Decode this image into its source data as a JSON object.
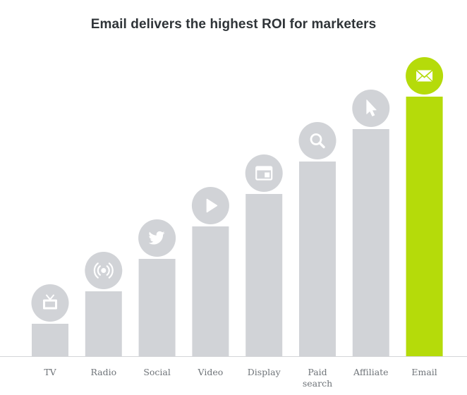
{
  "chart_data": {
    "type": "bar",
    "title": "Email delivers the highest ROI for marketers",
    "xlabel": "",
    "ylabel": "",
    "ylim": [
      0,
      8
    ],
    "grid": false,
    "legend": "none",
    "categories": [
      {
        "label": "TV",
        "lines": [
          "TV"
        ],
        "icon": "tv-icon"
      },
      {
        "label": "Radio",
        "lines": [
          "Radio"
        ],
        "icon": "radio-icon"
      },
      {
        "label": "Social",
        "lines": [
          "Social"
        ],
        "icon": "twitter-icon"
      },
      {
        "label": "Video",
        "lines": [
          "Video"
        ],
        "icon": "play-icon"
      },
      {
        "label": "Display",
        "lines": [
          "Display"
        ],
        "icon": "display-window-icon"
      },
      {
        "label": "Paid search",
        "lines": [
          "Paid",
          "search"
        ],
        "icon": "search-icon"
      },
      {
        "label": "Affiliate",
        "lines": [
          "Affiliate"
        ],
        "icon": "cursor-icon"
      },
      {
        "label": "Email",
        "lines": [
          "Email"
        ],
        "icon": "envelope-icon"
      }
    ],
    "values": [
      1,
      2,
      3,
      4,
      5,
      6,
      7,
      8
    ],
    "highlight": "Email"
  },
  "colors": {
    "bar": "#d1d3d7",
    "highlight": "#b5db0a",
    "icon_circle": "#d1d3d7",
    "icon_glyph": "#ffffff",
    "baseline": "#d4d5d8",
    "title": "#2f3438",
    "tick_label": "#6f7479"
  }
}
